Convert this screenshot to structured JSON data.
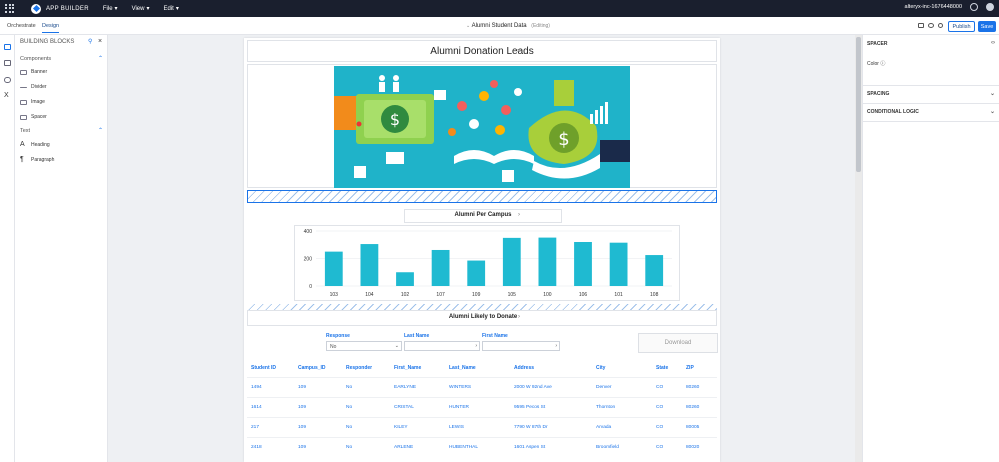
{
  "topbar": {
    "app_name": "APP BUILDER",
    "menus": [
      "File",
      "Edit"
    ],
    "view_menu": "View",
    "workspace": "alteryx-inc-1676448000"
  },
  "subbar": {
    "tabs": [
      "Orchestrate",
      "Design"
    ],
    "doc_title": "Alumni Student Data",
    "doc_status": "(Editing)",
    "publish_label": "Publish",
    "save_label": "Save"
  },
  "left_panel": {
    "title": "BUILDING BLOCKS",
    "components_label": "Components",
    "components": [
      "Banner",
      "Divider",
      "Image",
      "Spacer"
    ],
    "text_label": "Text",
    "text_items": [
      "Heading",
      "Paragraph"
    ]
  },
  "page": {
    "title": "Alumni Donation Leads",
    "chart_title": "Alumni Per Campus",
    "table_title": "Alumni Likely to Donate",
    "download_label": "Download",
    "filters": [
      {
        "label": "Response",
        "value": "No"
      },
      {
        "label": "Last Name",
        "value": ""
      },
      {
        "label": "First Name",
        "value": ""
      }
    ],
    "columns": [
      "Student ID",
      "Campus_ID",
      "Responder",
      "First_Name",
      "Last_Name",
      "Address",
      "City",
      "State",
      "ZIP"
    ],
    "rows": [
      [
        "1494",
        "109",
        "No",
        "EARLYNE",
        "WINTERS",
        "2000 W 92nd Ave",
        "Denver",
        "CO",
        "80260"
      ],
      [
        "1614",
        "109",
        "No",
        "CRISTAL",
        "HUNTER",
        "9595 Pecos St",
        "Thornton",
        "CO",
        "80260"
      ],
      [
        "217",
        "109",
        "No",
        "KILEY",
        "LEWIS",
        "7790 W 87th Dr",
        "Arvada",
        "CO",
        "80005"
      ],
      [
        "2418",
        "109",
        "No",
        "ARLENE",
        "HUBENTHAL",
        "1601 Aspen St",
        "Broomfield",
        "CO",
        "80020"
      ]
    ]
  },
  "chart_data": {
    "type": "bar",
    "title": "Alumni Per Campus",
    "categories": [
      "103",
      "104",
      "102",
      "107",
      "109",
      "105",
      "100",
      "106",
      "101",
      "108"
    ],
    "values": [
      250,
      305,
      100,
      262,
      185,
      350,
      352,
      320,
      315,
      225
    ],
    "ylim": [
      0,
      400
    ],
    "yticks": [
      0,
      200,
      400
    ],
    "bar_color": "#1fbad1",
    "grid": true
  },
  "right_panel": {
    "spacer_label": "SPACER",
    "color_label": "Color",
    "spacing_label": "SPACING",
    "conditional_label": "CONDITIONAL LOGIC"
  },
  "colors": {
    "accent": "#1a73e8",
    "topbar": "#1a1f2e",
    "banner_bg": "#1fb3c9"
  }
}
